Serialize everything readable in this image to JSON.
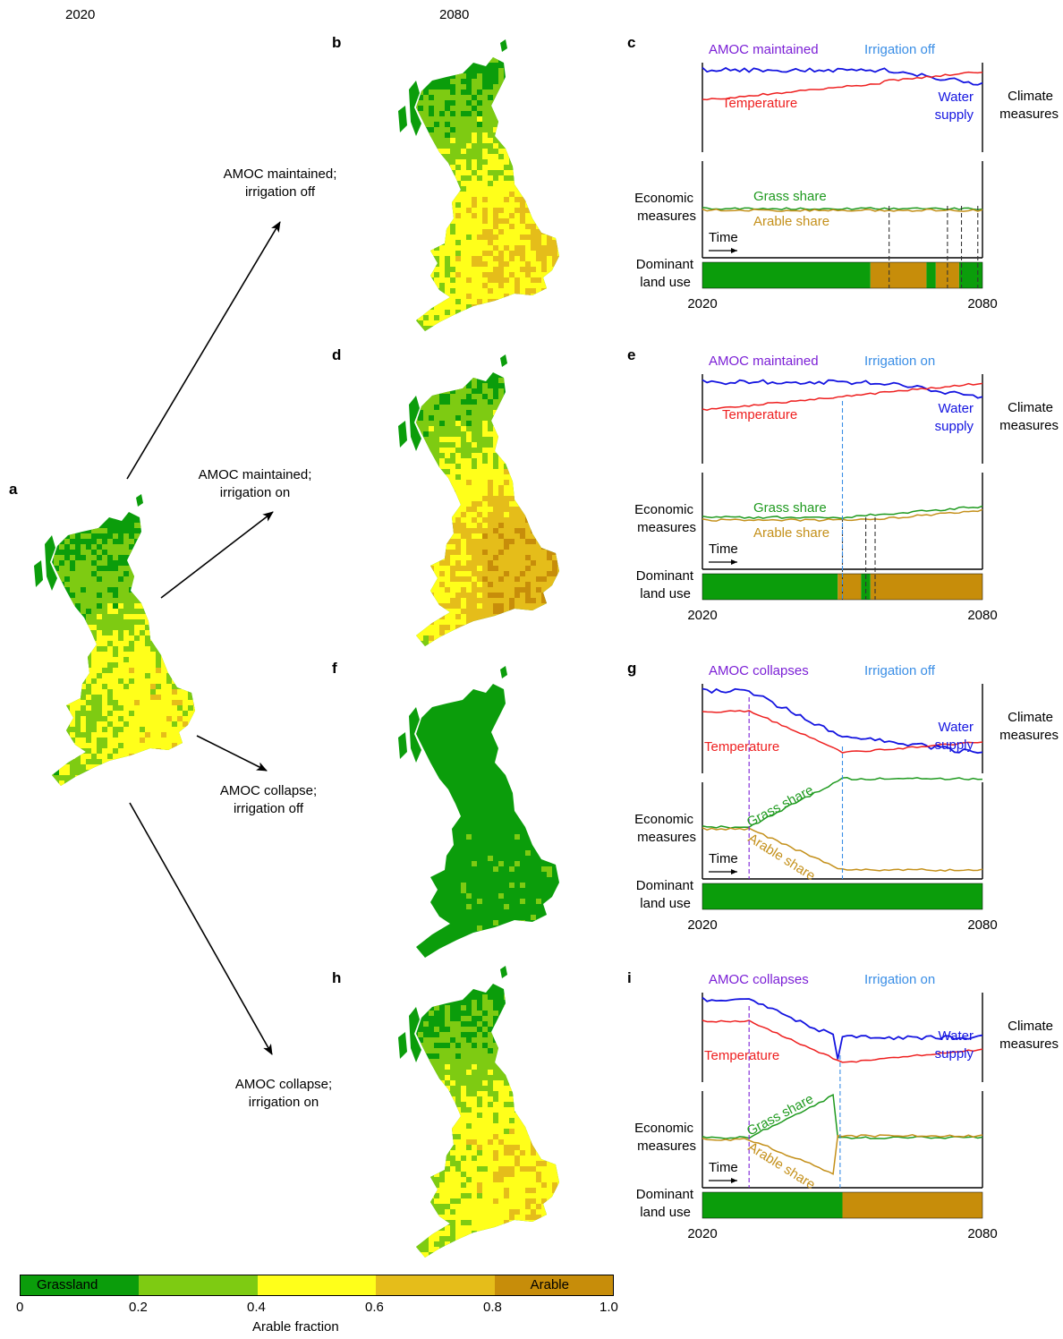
{
  "headers": {
    "left": "2020",
    "mid": "2080"
  },
  "panel_letters": {
    "a": "a",
    "b": "b",
    "c": "c",
    "d": "d",
    "e": "e",
    "f": "f",
    "g": "g",
    "h": "h",
    "i": "i"
  },
  "scenarios": [
    {
      "line1": "AMOC maintained;",
      "line2": "irrigation off"
    },
    {
      "line1": "AMOC maintained;",
      "line2": "irrigation on"
    },
    {
      "line1": "AMOC collapse;",
      "line2": "irrigation off"
    },
    {
      "line1": "AMOC collapse;",
      "line2": "irrigation on"
    }
  ],
  "maps": {
    "a": {
      "arable_fraction_dominant": 0.5
    },
    "b": {
      "arable_fraction_dominant": 0.6
    },
    "d": {
      "arable_fraction_dominant": 0.75
    },
    "f": {
      "arable_fraction_dominant": 0.1
    },
    "h": {
      "arable_fraction_dominant": 0.55
    }
  },
  "common": {
    "climate_l1": "Climate",
    "climate_l2": "measures",
    "econ_l1": "Economic",
    "econ_l2": "measures",
    "dom_l1": "Dominant",
    "dom_l2": "land use",
    "time": "Time",
    "temp": "Temperature",
    "water_l1": "Water",
    "water_l2": "supply",
    "grass": "Grass share",
    "arable": "Arable share",
    "x_start": "2020",
    "x_end": "2080"
  },
  "panels": [
    {
      "amoc": "AMOC maintained",
      "irr": "Irrigation off",
      "dominant_land_use": [
        "grass",
        "arable",
        "grass",
        "arable",
        "grass"
      ]
    },
    {
      "amoc": "AMOC maintained",
      "irr": "Irrigation on",
      "dominant_land_use": [
        "grass",
        "arable",
        "grass",
        "arable"
      ]
    },
    {
      "amoc": "AMOC collapses",
      "irr": "Irrigation off",
      "dominant_land_use": [
        "grass"
      ]
    },
    {
      "amoc": "AMOC collapses",
      "irr": "Irrigation on",
      "dominant_land_use": [
        "grass",
        "arable"
      ]
    }
  ],
  "colorbar": {
    "title": "Arable fraction",
    "grass_label": "Grassland",
    "arable_label": "Arable",
    "ticks": [
      "0",
      "0.2",
      "0.4",
      "0.6",
      "0.8",
      "1.0"
    ],
    "colors": [
      "#0b9d0b",
      "#7ecb12",
      "#ffff1a",
      "#e5bd1a",
      "#c78d0a"
    ]
  },
  "colors": {
    "grass": "#0b9d0b",
    "arable": "#c78d0a",
    "amoc": "#7b1fd6",
    "irrigation": "#3a8ee6",
    "temperature": "#ee2020",
    "water": "#1414e0",
    "grass_line": "#1f9a1f",
    "arable_line": "#c4901a"
  }
}
